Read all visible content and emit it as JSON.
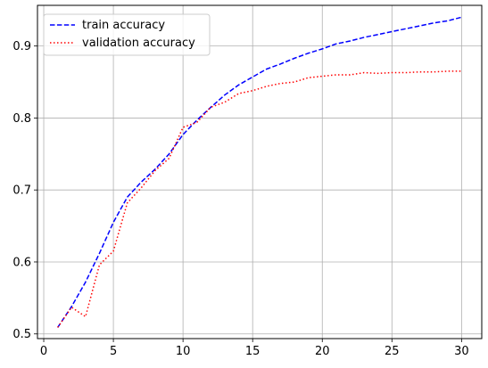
{
  "chart_data": {
    "type": "line",
    "title": "",
    "xlabel": "",
    "ylabel": "",
    "xlim": [
      -0.45,
      31.45
    ],
    "ylim": [
      0.4935,
      0.9565
    ],
    "grid": true,
    "legend_position": "top-left",
    "x": [
      1,
      2,
      3,
      4,
      5,
      6,
      7,
      8,
      9,
      10,
      11,
      12,
      13,
      14,
      15,
      16,
      17,
      18,
      19,
      20,
      21,
      22,
      23,
      24,
      25,
      26,
      27,
      28,
      29,
      30
    ],
    "xticks": [
      0,
      5,
      10,
      15,
      20,
      25,
      30
    ],
    "yticks": [
      0.5,
      0.6,
      0.7,
      0.8,
      0.9
    ],
    "xtick_labels": [
      "0",
      "5",
      "10",
      "15",
      "20",
      "25",
      "30"
    ],
    "ytick_labels": [
      "0.5",
      "0.6",
      "0.7",
      "0.8",
      "0.9"
    ],
    "series": [
      {
        "name": "train accuracy",
        "color": "#0000ff",
        "style": "dashed",
        "values": [
          0.509,
          0.538,
          0.572,
          0.612,
          0.655,
          0.69,
          0.711,
          0.729,
          0.75,
          0.777,
          0.797,
          0.815,
          0.832,
          0.846,
          0.857,
          0.868,
          0.875,
          0.883,
          0.89,
          0.896,
          0.903,
          0.907,
          0.912,
          0.916,
          0.92,
          0.924,
          0.928,
          0.932,
          0.935,
          0.94
        ]
      },
      {
        "name": "validation accuracy",
        "color": "#ff0000",
        "style": "dotted",
        "values": [
          0.509,
          0.537,
          0.524,
          0.596,
          0.615,
          0.682,
          0.703,
          0.727,
          0.744,
          0.787,
          0.794,
          0.815,
          0.822,
          0.834,
          0.838,
          0.844,
          0.848,
          0.85,
          0.856,
          0.858,
          0.86,
          0.86,
          0.863,
          0.862,
          0.863,
          0.863,
          0.864,
          0.864,
          0.865,
          0.865
        ]
      }
    ]
  }
}
